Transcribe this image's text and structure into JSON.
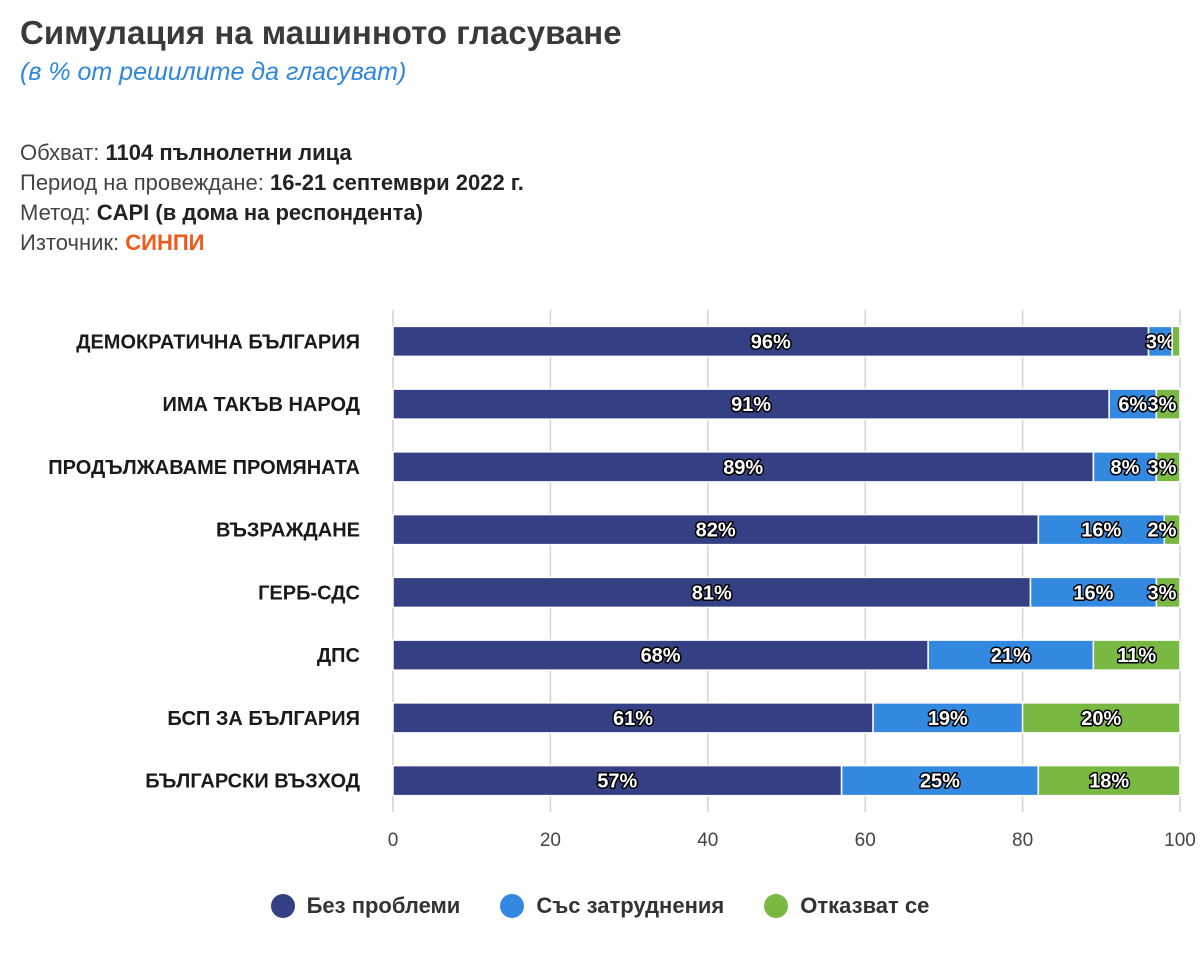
{
  "header": {
    "title": "Симулация на машинното гласуване",
    "subtitle": "(в % от решилите да гласуват)"
  },
  "meta": {
    "scope_label": "Обхват:",
    "scope_value": "1104 пълнолетни лица",
    "period_label": "Период на провеждане:",
    "period_value": "16-21 септември 2022 г.",
    "method_label": "Метод:",
    "method_value": "CAPI (в дома на респондента)",
    "source_label": "Източник:",
    "source_value": "СИНПИ"
  },
  "chart_data": {
    "type": "bar",
    "orientation": "horizontal",
    "stacked": true,
    "categories": [
      "ДЕМОКРАТИЧНА БЪЛГАРИЯ",
      "ИМА ТАКЪВ НАРОД",
      "ПРОДЪЛЖАВАМЕ ПРОМЯНАТА",
      "ВЪЗРАЖДАНЕ",
      "ГЕРБ-СДС",
      "ДПС",
      "БСП ЗА БЪЛГАРИЯ",
      "БЪЛГАРСКИ ВЪЗХОД"
    ],
    "series": [
      {
        "name": "Без проблеми",
        "color": "#343f84",
        "values": [
          96,
          91,
          89,
          82,
          81,
          68,
          61,
          57
        ]
      },
      {
        "name": "Със затруднения",
        "color": "#3389e0",
        "values": [
          3,
          6,
          8,
          16,
          16,
          21,
          19,
          25
        ]
      },
      {
        "name": "Отказват се",
        "color": "#7ab844",
        "values": [
          1,
          3,
          3,
          2,
          3,
          11,
          20,
          18
        ]
      }
    ],
    "labels": [
      [
        "96%",
        "3%",
        ""
      ],
      [
        "91%",
        "6%",
        "3%"
      ],
      [
        "89%",
        "8%",
        "3%"
      ],
      [
        "82%",
        "16%",
        "2%"
      ],
      [
        "81%",
        "16%",
        "3%"
      ],
      [
        "68%",
        "21%",
        "11%"
      ],
      [
        "61%",
        "19%",
        "20%"
      ],
      [
        "57%",
        "25%",
        "18%"
      ]
    ],
    "xlim": [
      0,
      100
    ],
    "xticks": [
      "0",
      "20",
      "40",
      "60",
      "80",
      "100"
    ],
    "grid": true,
    "legend_position": "bottom"
  }
}
